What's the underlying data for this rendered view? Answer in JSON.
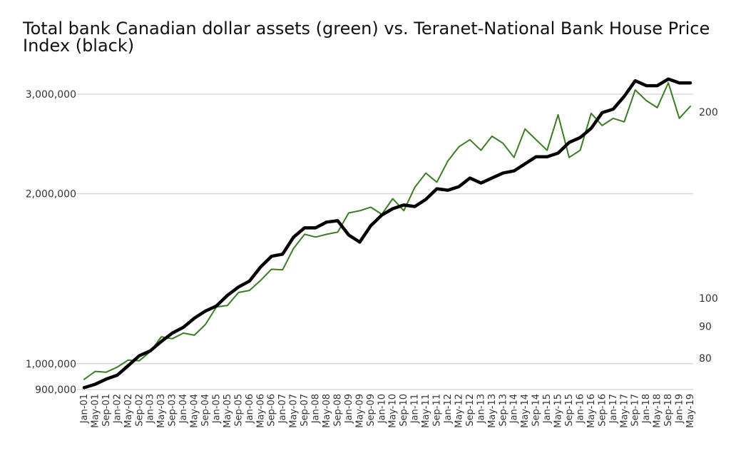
{
  "chart_data": {
    "type": "line",
    "title": "Total bank Canadian dollar assets (green) vs. Teranet-National Bank House Price Index (black)",
    "x": [
      "Jan-01",
      "May-01",
      "Sep-01",
      "Jan-02",
      "May-02",
      "Sep-02",
      "Jan-03",
      "May-03",
      "Sep-03",
      "Jan-04",
      "May-04",
      "Sep-04",
      "Jan-05",
      "May-05",
      "Sep-05",
      "Jan-06",
      "May-06",
      "Sep-06",
      "Jan-07",
      "May-07",
      "Sep-07",
      "Jan-08",
      "May-08",
      "Sep-08",
      "Jan-09",
      "May-09",
      "Sep-09",
      "Jan-10",
      "May-10",
      "Sep-10",
      "Jan-11",
      "May-11",
      "Sep-11",
      "Jan-12",
      "May-12",
      "Sep-12",
      "Jan-13",
      "May-13",
      "Sep-13",
      "Jan-14",
      "May-14",
      "Sep-14",
      "Jan-15",
      "May-15",
      "Sep-15",
      "Jan-16",
      "May-16",
      "Sep-16",
      "Jan-17",
      "May-17",
      "Sep-17",
      "Jan-18",
      "May-18",
      "Sep-18",
      "Jan-19",
      "May-19"
    ],
    "left_axis": {
      "scale": "log",
      "ylim": [
        900000,
        3200000
      ],
      "ticks": [
        900000,
        1000000,
        2000000,
        3000000
      ],
      "tick_labels": [
        "900,000",
        "1,000,000",
        "2,000,000",
        "3,000,000"
      ],
      "grid": true
    },
    "right_axis": {
      "scale": "log",
      "ylim": [
        71,
        226
      ],
      "ticks": [
        80,
        90,
        100,
        200
      ],
      "tick_labels": [
        "80",
        "90",
        "100",
        "200"
      ]
    },
    "series": [
      {
        "axis": "left",
        "color": "#3a7d22",
        "values": [
          938000,
          969000,
          966000,
          986000,
          1015000,
          1012000,
          1050000,
          1116000,
          1107000,
          1133000,
          1123000,
          1173000,
          1261000,
          1268000,
          1337000,
          1348000,
          1404000,
          1470000,
          1466000,
          1600000,
          1695000,
          1676000,
          1695000,
          1710000,
          1849000,
          1866000,
          1893000,
          1839000,
          1960000,
          1866000,
          2053000,
          2176000,
          2096000,
          2286000,
          2422000,
          2493000,
          2387000,
          2529000,
          2457000,
          2319000,
          2604000,
          2493000,
          2387000,
          2760000,
          2319000,
          2387000,
          2776000,
          2642000,
          2720000,
          2681000,
          3054000,
          2924000,
          2841000,
          3144000,
          2720000,
          2857000
        ]
      },
      {
        "axis": "right",
        "color": "#000000",
        "values": [
          71.5,
          72.4,
          73.8,
          74.9,
          77.6,
          80.5,
          82.0,
          84.9,
          87.6,
          89.5,
          92.6,
          95.1,
          96.9,
          100.8,
          104.0,
          106.3,
          112.0,
          116.6,
          117.5,
          125.2,
          129.6,
          129.6,
          132.4,
          133.1,
          126.2,
          122.9,
          130.6,
          135.9,
          139.2,
          141.1,
          140.3,
          144.1,
          149.9,
          149.1,
          151.1,
          156.0,
          153.1,
          156.0,
          158.9,
          160.2,
          164.5,
          168.9,
          168.9,
          171.2,
          178.1,
          181.4,
          187.7,
          199.0,
          201.6,
          211.5,
          224.1,
          220.0,
          220.0,
          225.5,
          222.3,
          222.3
        ]
      }
    ]
  }
}
